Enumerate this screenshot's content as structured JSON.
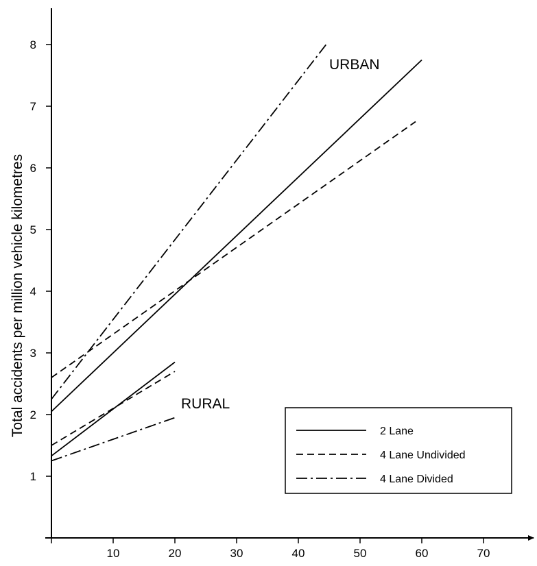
{
  "chart_data": {
    "type": "line",
    "title": "",
    "xlabel": "",
    "ylabel": "Total accidents per million vehicle kilometres",
    "xlim": [
      0,
      78
    ],
    "ylim": [
      0,
      8.3
    ],
    "x_ticks": [
      10,
      20,
      30,
      40,
      50,
      60,
      70
    ],
    "y_ticks": [
      1,
      2,
      3,
      4,
      5,
      6,
      7,
      8
    ],
    "grid": false,
    "legend_position": "bottom-right",
    "annotations": [
      {
        "text": "URBAN",
        "x": 45,
        "y": 7.6
      },
      {
        "text": "RURAL",
        "x": 21,
        "y": 2.1
      }
    ],
    "legend": [
      {
        "label": "2 Lane",
        "style": "solid"
      },
      {
        "label": "4 Lane Undivided",
        "style": "dashed"
      },
      {
        "label": "4 Lane Divided",
        "style": "dashdot"
      }
    ],
    "series": [
      {
        "group": "URBAN",
        "type": "2 Lane",
        "style": "solid",
        "x": [
          0,
          60
        ],
        "y": [
          2.05,
          7.75
        ]
      },
      {
        "group": "URBAN",
        "type": "4 Lane Undivided",
        "style": "dashed",
        "x": [
          0,
          59
        ],
        "y": [
          2.6,
          6.75
        ]
      },
      {
        "group": "URBAN",
        "type": "4 Lane Divided",
        "style": "dashdot",
        "x": [
          0,
          44.5
        ],
        "y": [
          2.25,
          8.0
        ]
      },
      {
        "group": "RURAL",
        "type": "2 Lane",
        "style": "solid",
        "x": [
          0,
          20
        ],
        "y": [
          1.33,
          2.85
        ]
      },
      {
        "group": "RURAL",
        "type": "4 Lane Undivided",
        "style": "dashed",
        "x": [
          0,
          20
        ],
        "y": [
          1.5,
          2.7
        ]
      },
      {
        "group": "RURAL",
        "type": "4 Lane Divided",
        "style": "dashdot",
        "x": [
          0,
          20
        ],
        "y": [
          1.25,
          1.95
        ]
      }
    ]
  }
}
